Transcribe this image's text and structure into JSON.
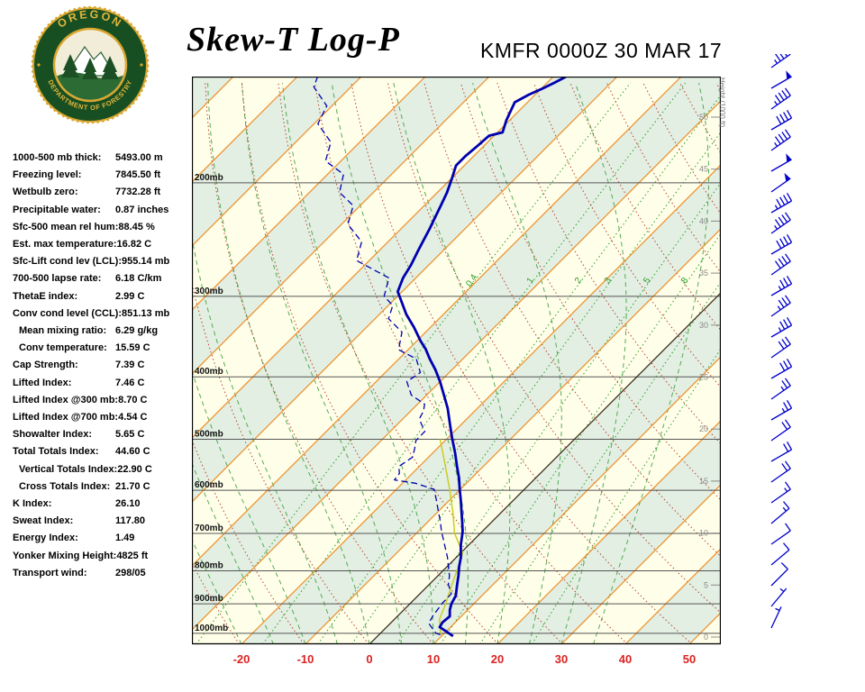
{
  "header": {
    "title": "Skew-T Log-P",
    "station_line": "KMFR 0000Z 30 MAR 17"
  },
  "logo": {
    "text_top": "OREGON",
    "text_bottom": "DEPARTMENT OF FORESTRY"
  },
  "indices": [
    {
      "label": "1000-500 mb thick:",
      "value": "5493.00 m",
      "indent": false
    },
    {
      "label": "Freezing level:",
      "value": "7845.50 ft",
      "indent": false
    },
    {
      "label": "Wetbulb zero:",
      "value": "7732.28 ft",
      "indent": false
    },
    {
      "label": "Precipitable water:",
      "value": "0.87 inches",
      "indent": false
    },
    {
      "label": "Sfc-500 mean rel hum:",
      "value": "88.45 %",
      "indent": false
    },
    {
      "label": "Est. max temperature:",
      "value": "16.82 C",
      "indent": false
    },
    {
      "label": "Sfc-Lift cond lev (LCL):",
      "value": "955.14 mb",
      "indent": false
    },
    {
      "label": "700-500 lapse rate:",
      "value": "6.18 C/km",
      "indent": false
    },
    {
      "label": "ThetaE index:",
      "value": "2.99 C",
      "indent": false
    },
    {
      "label": "Conv cond level (CCL):",
      "value": "851.13 mb",
      "indent": false
    },
    {
      "label": "Mean mixing ratio:",
      "value": "6.29 g/kg",
      "indent": true
    },
    {
      "label": "Conv temperature:",
      "value": "15.59 C",
      "indent": true
    },
    {
      "label": "Cap Strength:",
      "value": "7.39 C",
      "indent": false
    },
    {
      "label": "Lifted Index:",
      "value": "7.46 C",
      "indent": false
    },
    {
      "label": "Lifted Index @300 mb:",
      "value": "8.70 C",
      "indent": false
    },
    {
      "label": "Lifted Index @700 mb:",
      "value": "4.54 C",
      "indent": false
    },
    {
      "label": "Showalter Index:",
      "value": "5.65 C",
      "indent": false
    },
    {
      "label": "Total Totals Index:",
      "value": "44.60 C",
      "indent": false
    },
    {
      "label": "Vertical Totals Index:",
      "value": "22.90 C",
      "indent": true
    },
    {
      "label": "Cross Totals Index:",
      "value": "21.70 C",
      "indent": true
    },
    {
      "label": "K Index:",
      "value": "26.10",
      "indent": false
    },
    {
      "label": "Sweat Index:",
      "value": "117.80",
      "indent": false
    },
    {
      "label": "Energy Index:",
      "value": "1.49",
      "indent": false
    },
    {
      "label": "Yonker Mixing Height:",
      "value": "4825 ft",
      "indent": false
    },
    {
      "label": "Transport wind:",
      "value": "298/05",
      "indent": false
    }
  ],
  "chart_data": {
    "type": "line",
    "title": "Skew-T Log-P",
    "station": "KMFR",
    "valid_time": "0000Z 30 MAR 17",
    "y_scale": "log-pressure",
    "skew_deg": 45,
    "pressure_bottom_mb": 1040,
    "pressure_top_mb": 137,
    "temp_ticks_c": [
      -20,
      -10,
      0,
      10,
      20,
      30,
      40,
      50
    ],
    "pressure_lines": [
      {
        "p": 200,
        "label": "200mb"
      },
      {
        "p": 300,
        "label": "300mb"
      },
      {
        "p": 400,
        "label": "400mb"
      },
      {
        "p": 500,
        "label": "500mb"
      },
      {
        "p": 600,
        "label": "600mb"
      },
      {
        "p": 700,
        "label": "700mb"
      },
      {
        "p": 800,
        "label": "800mb"
      },
      {
        "p": 900,
        "label": "900mb"
      },
      {
        "p": 1000,
        "label": "1000mb"
      }
    ],
    "height_axis_title": "Height (1000 ft)",
    "height_ticks_kft": [
      0,
      5,
      10,
      15,
      20,
      25,
      30,
      35,
      40,
      45,
      50
    ],
    "mixing_ratio_gkg": [
      0.4,
      1,
      2,
      3,
      5,
      8
    ],
    "mixing_ratio_labels": [
      "0.4",
      "1",
      "2",
      "3",
      "5",
      "8"
    ],
    "mixing_ratio_extra": [
      12,
      20
    ],
    "dry_adiabats_theta_k": {
      "min": 250,
      "max": 440,
      "step": 10
    },
    "moist_adiabats_start_c": [
      -20,
      -15,
      -10,
      -5,
      0,
      5,
      10,
      15,
      20,
      25,
      30,
      35
    ],
    "colors": {
      "band_cream": "#FFFFE9",
      "band_green": "#E2EFE2",
      "isotherm": "#ED8E2A",
      "zero_isotherm": "#222222",
      "dry": "#BB4433",
      "moist": "#55AA55",
      "mixing": "#2E9E2E",
      "pressure_line": "#555555",
      "sounding_blue": "#0000B0",
      "wetbulb_yellow": "#CCCC22",
      "axis_red": "#DD2222",
      "wind_blue": "#0000CC"
    },
    "series": [
      {
        "name": "wetbulb",
        "color": "#CCCC22",
        "width": 1.5,
        "dash": "",
        "points_p_t": [
          [
            1005,
            9.8
          ],
          [
            1000,
            9.4
          ],
          [
            950,
            7.0
          ],
          [
            900,
            5.6
          ],
          [
            850,
            3.9
          ],
          [
            800,
            2.2
          ],
          [
            750,
            0.3
          ],
          [
            700,
            -4.0
          ],
          [
            650,
            -7.5
          ],
          [
            600,
            -11.5
          ],
          [
            550,
            -16.0
          ],
          [
            500,
            -21.0
          ]
        ]
      },
      {
        "name": "dewpoint",
        "color": "#0000B0",
        "width": 1.3,
        "dash": "7,4",
        "points_p_t": [
          [
            1005,
            9.6
          ],
          [
            1000,
            8.7
          ],
          [
            965,
            6.0
          ],
          [
            940,
            5.5
          ],
          [
            900,
            5.0
          ],
          [
            868,
            4.9
          ],
          [
            840,
            3.0
          ],
          [
            814,
            1.8
          ],
          [
            788,
            0.2
          ],
          [
            762,
            -1.4
          ],
          [
            737,
            -3.2
          ],
          [
            714,
            -4.9
          ],
          [
            696,
            -6.3
          ],
          [
            672,
            -8.0
          ],
          [
            648,
            -9.9
          ],
          [
            622,
            -12.0
          ],
          [
            598,
            -14.1
          ],
          [
            585,
            -18.0
          ],
          [
            578,
            -21.8
          ],
          [
            565,
            -22.0
          ],
          [
            551,
            -23.2
          ],
          [
            533,
            -22.5
          ],
          [
            517,
            -23.5
          ],
          [
            502,
            -24.6
          ],
          [
            486,
            -24.6
          ],
          [
            472,
            -26.5
          ],
          [
            463,
            -27.5
          ],
          [
            452,
            -28.0
          ],
          [
            441,
            -28.9
          ],
          [
            427,
            -32.4
          ],
          [
            407,
            -35.2
          ],
          [
            394,
            -34.5
          ],
          [
            375,
            -37.3
          ],
          [
            363,
            -41.5
          ],
          [
            341,
            -43.7
          ],
          [
            325,
            -47.9
          ],
          [
            310,
            -49.3
          ],
          [
            300,
            -52.1
          ],
          [
            281,
            -54.2
          ],
          [
            264,
            -62.0
          ],
          [
            247,
            -64.1
          ],
          [
            232,
            -69.0
          ],
          [
            217,
            -71.1
          ],
          [
            207,
            -75.3
          ],
          [
            194,
            -77.5
          ],
          [
            185,
            -82.4
          ],
          [
            173,
            -84.5
          ],
          [
            162,
            -89.4
          ],
          [
            152,
            -90.8
          ],
          [
            142,
            -95.8
          ],
          [
            137,
            -96.8
          ]
        ]
      },
      {
        "name": "temperature",
        "color": "#0000B0",
        "width": 2.8,
        "dash": "",
        "points_p_t": [
          [
            1010,
            11.8
          ],
          [
            995,
            10.2
          ],
          [
            978,
            8.3
          ],
          [
            962,
            8.0
          ],
          [
            941,
            8.2
          ],
          [
            920,
            7.2
          ],
          [
            900,
            6.5
          ],
          [
            874,
            5.9
          ],
          [
            845,
            4.6
          ],
          [
            814,
            3.2
          ],
          [
            788,
            1.9
          ],
          [
            762,
            0.7
          ],
          [
            730,
            -1.2
          ],
          [
            696,
            -3.0
          ],
          [
            672,
            -4.6
          ],
          [
            648,
            -6.3
          ],
          [
            622,
            -8.2
          ],
          [
            598,
            -10.1
          ],
          [
            574,
            -12.0
          ],
          [
            551,
            -14.1
          ],
          [
            524,
            -16.6
          ],
          [
            497,
            -19.4
          ],
          [
            472,
            -22.0
          ],
          [
            448,
            -24.6
          ],
          [
            427,
            -27.3
          ],
          [
            407,
            -30.0
          ],
          [
            390,
            -32.6
          ],
          [
            375,
            -35.2
          ],
          [
            362,
            -37.4
          ],
          [
            352,
            -39.4
          ],
          [
            335,
            -42.6
          ],
          [
            320,
            -45.8
          ],
          [
            307,
            -48.3
          ],
          [
            295,
            -50.7
          ],
          [
            281,
            -52.0
          ],
          [
            268,
            -52.8
          ],
          [
            255,
            -53.9
          ],
          [
            243,
            -54.9
          ],
          [
            235,
            -55.6
          ],
          [
            228,
            -56.3
          ],
          [
            217,
            -57.4
          ],
          [
            207,
            -58.5
          ],
          [
            197,
            -59.9
          ],
          [
            188,
            -61.3
          ],
          [
            182,
            -61.3
          ],
          [
            175,
            -61.0
          ],
          [
            169,
            -60.8
          ],
          [
            167,
            -59.2
          ],
          [
            160,
            -60.5
          ],
          [
            150,
            -62.0
          ],
          [
            146,
            -61.0
          ],
          [
            143,
            -59.9
          ],
          [
            140,
            -58.9
          ],
          [
            137,
            -58.0
          ]
        ]
      }
    ],
    "winds": [
      {
        "y": 697,
        "spd": 5,
        "dir": 25
      },
      {
        "y": 673,
        "spd": 5,
        "dir": 40
      },
      {
        "y": 650,
        "spd": 10,
        "dir": 45
      },
      {
        "y": 627,
        "spd": 10,
        "dir": 50
      },
      {
        "y": 604,
        "spd": 10,
        "dir": 55
      },
      {
        "y": 581,
        "spd": 15,
        "dir": 50
      },
      {
        "y": 558,
        "spd": 15,
        "dir": 55
      },
      {
        "y": 535,
        "spd": 20,
        "dir": 55
      },
      {
        "y": 512,
        "spd": 20,
        "dir": 60
      },
      {
        "y": 489,
        "spd": 20,
        "dir": 55
      },
      {
        "y": 466,
        "spd": 25,
        "dir": 60
      },
      {
        "y": 443,
        "spd": 25,
        "dir": 55
      },
      {
        "y": 420,
        "spd": 30,
        "dir": 60
      },
      {
        "y": 397,
        "spd": 30,
        "dir": 55
      },
      {
        "y": 374,
        "spd": 35,
        "dir": 60
      },
      {
        "y": 351,
        "spd": 35,
        "dir": 55
      },
      {
        "y": 328,
        "spd": 35,
        "dir": 60
      },
      {
        "y": 305,
        "spd": 40,
        "dir": 55
      },
      {
        "y": 282,
        "spd": 40,
        "dir": 60
      },
      {
        "y": 259,
        "spd": 45,
        "dir": 55
      },
      {
        "y": 236,
        "spd": 45,
        "dir": 60
      },
      {
        "y": 213,
        "spd": 50,
        "dir": 55
      },
      {
        "y": 190,
        "spd": 50,
        "dir": 60
      },
      {
        "y": 167,
        "spd": 45,
        "dir": 55
      },
      {
        "y": 144,
        "spd": 40,
        "dir": 60
      },
      {
        "y": 121,
        "spd": 45,
        "dir": 55
      },
      {
        "y": 98,
        "spd": 50,
        "dir": 60
      },
      {
        "y": 75,
        "spd": 45,
        "dir": 55
      }
    ]
  }
}
